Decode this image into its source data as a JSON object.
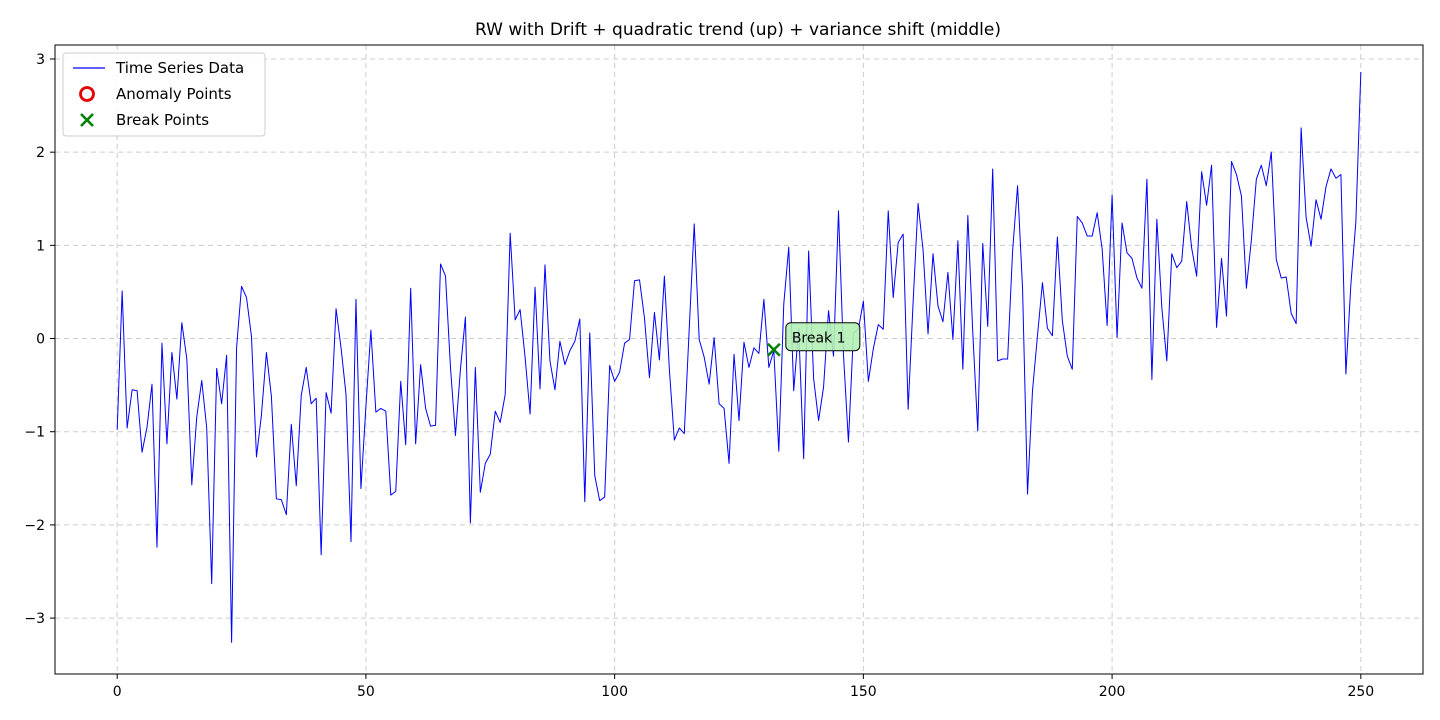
{
  "chart_data": {
    "type": "line",
    "title": "RW with Drift + quadratic trend (up) + variance shift (middle)",
    "xlabel": "",
    "ylabel": "",
    "xlim": [
      -12.5,
      262.5
    ],
    "ylim": [
      -3.6,
      3.15
    ],
    "xticks": [
      0,
      50,
      100,
      150,
      200,
      250
    ],
    "yticks": [
      -3,
      -2,
      -1,
      0,
      1,
      2,
      3
    ],
    "ytick_labels": [
      "−3",
      "−2",
      "−1",
      "0",
      "1",
      "2",
      "3"
    ],
    "grid": true,
    "legend_position": "top-left",
    "legend": [
      {
        "label": "Time Series Data",
        "marker": "line"
      },
      {
        "label": "Anomaly Points",
        "marker": "circle"
      },
      {
        "label": "Break Points",
        "marker": "x"
      }
    ],
    "colors": {
      "series": "#0000ff",
      "anomaly": "#e60000",
      "break": "#008000",
      "annotation_fill": "#b4f0b4"
    },
    "series": [
      {
        "name": "Time Series Data",
        "values": [
          -0.98,
          0.51,
          -0.96,
          -0.55,
          -0.56,
          -1.22,
          -0.95,
          -0.49,
          -2.24,
          -0.05,
          -1.13,
          -0.15,
          -0.65,
          0.17,
          -0.22,
          -1.57,
          -0.84,
          -0.45,
          -0.96,
          -2.63,
          -0.32,
          -0.7,
          -0.18,
          -3.26,
          -0.1,
          0.56,
          0.44,
          0.02,
          -1.27,
          -0.82,
          -0.15,
          -0.62,
          -1.72,
          -1.73,
          -1.89,
          -0.92,
          -1.58,
          -0.61,
          -0.31,
          -0.7,
          -0.64,
          -2.32,
          -0.58,
          -0.8,
          0.32,
          -0.1,
          -0.6,
          -2.18,
          0.42,
          -1.61,
          -0.73,
          0.09,
          -0.79,
          -0.75,
          -0.78,
          -1.68,
          -1.64,
          -0.46,
          -1.14,
          0.54,
          -1.13,
          -0.28,
          -0.75,
          -0.94,
          -0.93,
          0.8,
          0.67,
          -0.31,
          -1.04,
          -0.33,
          0.23,
          -1.98,
          -0.31,
          -1.65,
          -1.34,
          -1.24,
          -0.78,
          -0.9,
          -0.6,
          1.13,
          0.2,
          0.31,
          -0.2,
          -0.81,
          0.55,
          -0.54,
          0.79,
          -0.24,
          -0.55,
          -0.03,
          -0.28,
          -0.13,
          -0.03,
          0.21,
          -1.75,
          0.06,
          -1.47,
          -1.74,
          -1.7,
          -0.29,
          -0.46,
          -0.36,
          -0.05,
          -0.01,
          0.62,
          0.63,
          0.22,
          -0.42,
          0.28,
          -0.23,
          0.67,
          -0.33,
          -1.09,
          -0.96,
          -1.02,
          0.11,
          1.23,
          -0.01,
          -0.2,
          -0.49,
          0.01,
          -0.7,
          -0.75,
          -1.34,
          -0.17,
          -0.88,
          -0.04,
          -0.31,
          -0.1,
          -0.16,
          0.42,
          -0.31,
          -0.13,
          -1.21,
          0.37,
          0.98,
          -0.56,
          0.11,
          -1.29,
          0.94,
          -0.43,
          -0.88,
          -0.52,
          0.3,
          -0.19,
          1.37,
          -0.17,
          -1.11,
          0.06,
          0.1,
          0.4,
          -0.46,
          -0.11,
          0.15,
          0.1,
          1.37,
          0.44,
          1.03,
          1.12,
          -0.76,
          0.39,
          1.45,
          0.95,
          0.05,
          0.91,
          0.35,
          0.18,
          0.71,
          -0.01,
          1.05,
          -0.33,
          1.32,
          0.06,
          -0.99,
          1.02,
          0.13,
          1.82,
          -0.24,
          -0.22,
          -0.22,
          0.94,
          1.64,
          0.54,
          -1.67,
          -0.56,
          0.03,
          0.6,
          0.11,
          0.03,
          1.09,
          0.19,
          -0.19,
          -0.33,
          1.31,
          1.24,
          1.1,
          1.1,
          1.35,
          0.96,
          0.14,
          1.54,
          0.01,
          1.24,
          0.92,
          0.86,
          0.65,
          0.54,
          1.71,
          -0.44,
          1.28,
          0.33,
          -0.24,
          0.91,
          0.76,
          0.83,
          1.47,
          0.97,
          0.67,
          1.79,
          1.43,
          1.86,
          0.12,
          0.86,
          0.24,
          1.9,
          1.76,
          1.53,
          0.54,
          1.06,
          1.71,
          1.86,
          1.64,
          2.0,
          0.85,
          0.65,
          0.66,
          0.27,
          0.16,
          2.26,
          1.3,
          0.99,
          1.49,
          1.28,
          1.63,
          1.82,
          1.72,
          1.76,
          -0.38,
          0.58,
          1.25,
          2.86
        ]
      }
    ],
    "break_points": [
      {
        "x": 132,
        "y": -0.12
      }
    ],
    "anomaly_points": [],
    "annotations": [
      {
        "text": "Break 1",
        "x": 132,
        "y": -0.12
      }
    ]
  }
}
